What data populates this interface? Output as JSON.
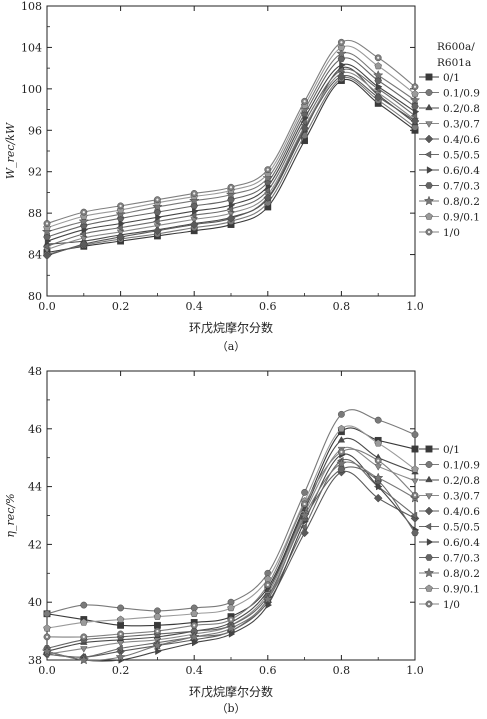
{
  "chart_data": [
    {
      "type": "line",
      "caption": "（a）",
      "xlabel": "环戊烷摩尔分数",
      "ylabel": "W_rec/kW",
      "xlim": [
        0.0,
        1.0
      ],
      "ylim": [
        80,
        108
      ],
      "xticks": [
        "0.0",
        "0.2",
        "0.4",
        "0.6",
        "0.8",
        "1.0"
      ],
      "yticks": [
        "80",
        "84",
        "88",
        "92",
        "96",
        "100",
        "104",
        "108"
      ],
      "legend_title": "R600a/R601a",
      "legend_position": "right",
      "grid": false,
      "x": [
        0.0,
        0.1,
        0.2,
        0.3,
        0.4,
        0.5,
        0.6,
        0.7,
        0.8,
        0.9,
        1.0
      ],
      "series": [
        {
          "name": "0/1",
          "marker": "square",
          "values": [
            84.2,
            84.8,
            85.3,
            85.8,
            86.3,
            86.9,
            88.6,
            95.0,
            100.8,
            98.6,
            96.0
          ]
        },
        {
          "name": "0.1/0.9",
          "marker": "circle",
          "values": [
            84.0,
            84.9,
            85.5,
            86.0,
            86.6,
            87.2,
            89.0,
            95.5,
            101.0,
            98.9,
            96.3
          ]
        },
        {
          "name": "0.2/0.8",
          "marker": "triangle-up",
          "values": [
            85.0,
            85.3,
            85.9,
            86.4,
            87.0,
            87.6,
            89.4,
            96.0,
            102.0,
            99.4,
            96.7
          ]
        },
        {
          "name": "0.3/0.7",
          "marker": "triangle-down",
          "values": [
            84.5,
            85.6,
            86.2,
            86.8,
            87.4,
            88.0,
            89.8,
            96.4,
            101.5,
            99.6,
            97.0
          ]
        },
        {
          "name": "0.4/0.6",
          "marker": "diamond",
          "values": [
            83.9,
            85.0,
            85.7,
            86.3,
            86.9,
            87.5,
            89.5,
            96.2,
            101.2,
            99.2,
            96.9
          ]
        },
        {
          "name": "0.5/0.5",
          "marker": "triangle-left",
          "values": [
            84.8,
            86.0,
            86.6,
            87.2,
            87.8,
            88.4,
            90.2,
            96.8,
            101.8,
            100.0,
            97.4
          ]
        },
        {
          "name": "0.6/0.4",
          "marker": "triangle-right",
          "values": [
            85.3,
            86.4,
            87.0,
            87.6,
            88.2,
            88.8,
            90.6,
            97.2,
            102.3,
            100.2,
            97.8
          ]
        },
        {
          "name": "0.7/0.3",
          "marker": "hexagon",
          "values": [
            85.7,
            86.8,
            87.5,
            88.1,
            88.7,
            89.3,
            91.0,
            97.6,
            102.9,
            100.8,
            98.3
          ]
        },
        {
          "name": "0.8/0.2",
          "marker": "star",
          "values": [
            86.2,
            87.2,
            87.9,
            88.6,
            89.2,
            89.8,
            91.4,
            98.0,
            103.4,
            101.3,
            98.9
          ]
        },
        {
          "name": "0.9/0.1",
          "marker": "pentagon",
          "values": [
            86.6,
            87.7,
            88.3,
            89.0,
            89.6,
            90.2,
            91.8,
            98.4,
            104.0,
            102.2,
            99.5
          ]
        },
        {
          "name": "1/0",
          "marker": "circle-dot",
          "values": [
            87.0,
            88.1,
            88.7,
            89.3,
            89.9,
            90.5,
            92.2,
            98.8,
            104.5,
            103.0,
            100.2
          ]
        }
      ]
    },
    {
      "type": "line",
      "caption": "（b）",
      "xlabel": "环戊烷摩尔分数",
      "ylabel": "η_rec/%",
      "xlim": [
        0.0,
        1.0
      ],
      "ylim": [
        38,
        48
      ],
      "xticks": [
        "0.0",
        "0.2",
        "0.4",
        "0.6",
        "0.8",
        "1.0"
      ],
      "yticks": [
        "38",
        "40",
        "42",
        "44",
        "46",
        "48"
      ],
      "legend_position": "right",
      "grid": false,
      "x": [
        0.0,
        0.1,
        0.2,
        0.3,
        0.4,
        0.5,
        0.6,
        0.7,
        0.8,
        0.9,
        1.0
      ],
      "series": [
        {
          "name": "0/1",
          "marker": "square",
          "values": [
            39.6,
            39.4,
            39.2,
            39.2,
            39.3,
            39.5,
            40.5,
            43.3,
            45.9,
            45.6,
            45.3
          ]
        },
        {
          "name": "0.1/0.9",
          "marker": "circle",
          "values": [
            39.6,
            39.9,
            39.8,
            39.7,
            39.8,
            40.0,
            41.0,
            43.8,
            46.5,
            46.3,
            45.8
          ]
        },
        {
          "name": "0.2/0.8",
          "marker": "triangle-up",
          "values": [
            38.3,
            38.6,
            38.7,
            38.8,
            39.0,
            39.3,
            40.4,
            43.2,
            45.6,
            45.0,
            44.5
          ]
        },
        {
          "name": "0.3/0.7",
          "marker": "triangle-down",
          "values": [
            38.2,
            38.4,
            38.6,
            38.7,
            38.9,
            39.2,
            40.3,
            43.1,
            45.3,
            44.7,
            44.2
          ]
        },
        {
          "name": "0.4/0.6",
          "marker": "diamond",
          "values": [
            38.2,
            38.1,
            38.3,
            38.5,
            38.7,
            39.0,
            40.0,
            42.4,
            44.5,
            43.6,
            42.9
          ]
        },
        {
          "name": "0.5/0.5",
          "marker": "triangle-left",
          "values": [
            38.2,
            38.1,
            38.4,
            38.6,
            38.8,
            39.0,
            40.1,
            42.6,
            44.9,
            44.0,
            43.0
          ]
        },
        {
          "name": "0.6/0.4",
          "marker": "triangle-right",
          "values": [
            38.3,
            38.0,
            38.0,
            38.3,
            38.6,
            38.9,
            39.9,
            42.8,
            45.1,
            44.0,
            42.5
          ]
        },
        {
          "name": "0.7/0.3",
          "marker": "hexagon",
          "values": [
            38.4,
            38.7,
            38.8,
            38.9,
            39.0,
            39.2,
            40.2,
            42.9,
            44.6,
            44.2,
            42.4
          ]
        },
        {
          "name": "0.8/0.2",
          "marker": "star",
          "values": [
            38.3,
            38.0,
            38.1,
            38.5,
            38.8,
            39.1,
            40.1,
            43.0,
            44.8,
            44.3,
            43.6
          ]
        },
        {
          "name": "0.9/0.1",
          "marker": "pentagon",
          "values": [
            39.1,
            39.3,
            39.4,
            39.5,
            39.6,
            39.8,
            40.8,
            43.5,
            46.0,
            45.5,
            44.6
          ]
        },
        {
          "name": "1/0",
          "marker": "circle-dot",
          "values": [
            38.8,
            38.8,
            38.9,
            39.0,
            39.2,
            39.4,
            40.6,
            43.4,
            45.2,
            44.9,
            43.7
          ]
        }
      ]
    }
  ]
}
